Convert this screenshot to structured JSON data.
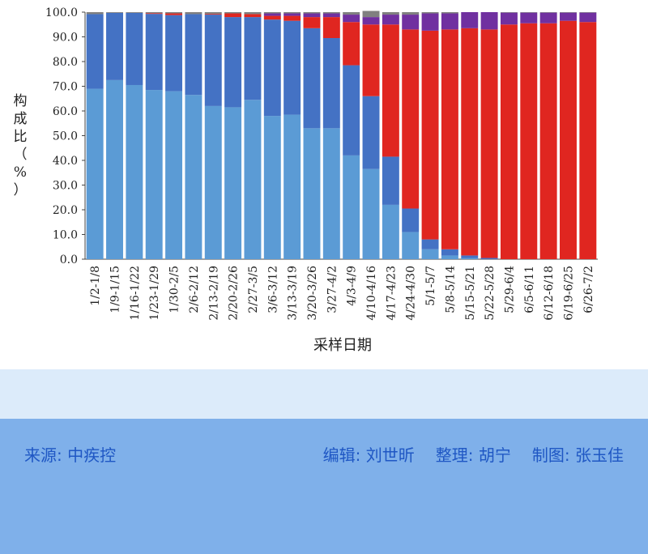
{
  "chart_data": {
    "type": "bar",
    "stacked": true,
    "percent_stacked": true,
    "title": "",
    "xlabel": "采样日期",
    "ylabel": "构成比（%）",
    "ylim": [
      0,
      100
    ],
    "yticks": [
      "0.0",
      "10.0",
      "20.0",
      "30.0",
      "40.0",
      "50.0",
      "60.0",
      "70.0",
      "80.0",
      "90.0",
      "100.0"
    ],
    "categories": [
      "1/2-1/8",
      "1/9-1/15",
      "1/16-1/22",
      "1/23-1/29",
      "1/30-2/5",
      "2/6-2/12",
      "2/13-2/19",
      "2/20-2/26",
      "2/27-3/5",
      "3/6-3/12",
      "3/13-3/19",
      "3/20-3/26",
      "3/27-4/2",
      "4/3-4/9",
      "4/10-4/16",
      "4/17-4/23",
      "4/24-4/30",
      "5/1-5/7",
      "5/8-5/14",
      "5/15-5/21",
      "5/22-5/28",
      "5/29-6/4",
      "6/5-6/11",
      "6/12-6/18",
      "6/19-6/25",
      "6/26-7/2"
    ],
    "series": [
      {
        "color": "#5b9bd5",
        "values": [
          69,
          72.5,
          70.5,
          68.5,
          68,
          66.5,
          62,
          61.5,
          64.5,
          58,
          58.5,
          53,
          53,
          42,
          36.5,
          22,
          11,
          4,
          1.5,
          0.5,
          0,
          0,
          0,
          0,
          0,
          0
        ]
      },
      {
        "color": "#4472c4",
        "values": [
          30.2,
          27.2,
          29.2,
          30.8,
          30.8,
          32.7,
          37,
          36.5,
          33.5,
          39,
          38,
          40.5,
          36.5,
          36.5,
          29.5,
          19.5,
          9.5,
          4,
          2.5,
          1,
          0.5,
          0,
          0,
          0,
          0,
          0
        ]
      },
      {
        "color": "#e02620",
        "values": [
          0,
          0,
          0,
          0.3,
          0.7,
          0,
          0.3,
          1.5,
          1.2,
          1.5,
          2,
          4.5,
          8.5,
          17.5,
          29,
          53.5,
          72.5,
          84.5,
          89,
          92,
          92.5,
          95,
          95.5,
          95.5,
          96.5,
          96
        ]
      },
      {
        "color": "#7030a0",
        "values": [
          0,
          0,
          0,
          0,
          0,
          0,
          0,
          0,
          0,
          1,
          1,
          1.5,
          1.5,
          3,
          3,
          4,
          6,
          7,
          6.5,
          6.5,
          7,
          4.8,
          4.3,
          4.3,
          3.3,
          3.8
        ]
      },
      {
        "color": "#808080",
        "values": [
          0.8,
          0.3,
          0.3,
          0.4,
          0.5,
          0.8,
          0.7,
          0.5,
          0.8,
          0.5,
          0.5,
          0.5,
          0.5,
          1,
          2.5,
          1,
          1,
          0.5,
          0.5,
          0,
          0,
          0.2,
          0.2,
          0.2,
          0.2,
          0.2
        ]
      }
    ]
  },
  "footer": {
    "source": "来源: 中疾控",
    "editor": "编辑: 刘世昕",
    "compiler": "整理: 胡宁",
    "graphics": "制图: 张玉佳"
  }
}
